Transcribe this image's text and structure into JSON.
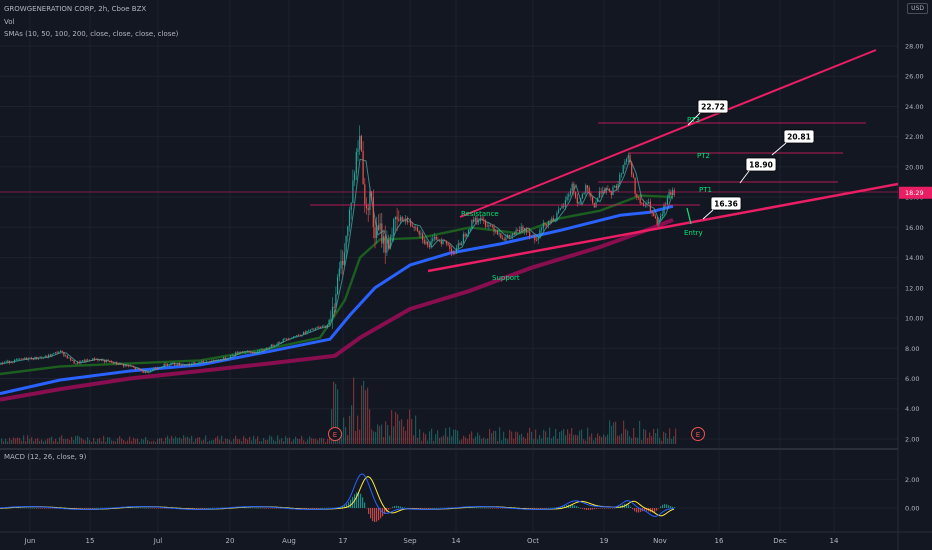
{
  "header": {
    "symbol_line": "GROWGENERATION CORP, 2h, Cboe BZX",
    "vol_label": "Vol",
    "sma_label": "SMAs (10, 50, 100, 200, close, close, close, close)",
    "macd_label": "MACD (12, 26, close, 9)",
    "currency": "USD"
  },
  "colors": {
    "background": "#131722",
    "grid": "#1e222d",
    "up_candle": "#26a69a",
    "down_candle": "#ef5350",
    "trendline": "#e91e63",
    "sma50": "#2962ff",
    "sma100": "#1b5e20",
    "sma200": "#880e4f",
    "annotation_text": "#00e676",
    "macd_line": "#2962ff",
    "signal_line": "#ffeb3b",
    "price_tag": "#e91e63"
  },
  "chart_data": {
    "type": "candlestick",
    "y_axis_ticks": [
      "2.00",
      "4.00",
      "6.00",
      "8.00",
      "10.00",
      "12.00",
      "14.00",
      "16.00",
      "18.00",
      "20.00",
      "22.00",
      "24.00",
      "26.00",
      "28.00"
    ],
    "y_range": [
      1.6,
      30.2
    ],
    "macd_ticks": [
      "2.00",
      "0.00"
    ],
    "x_labels": [
      "Jun",
      "15",
      "Jul",
      "20",
      "Aug",
      "17",
      "Sep",
      "14",
      "Oct",
      "19",
      "Nov",
      "16",
      "Dec",
      "14"
    ],
    "current_price": "18.29",
    "earnings_markers": [
      "E",
      "E"
    ],
    "annotations": {
      "targets": [
        {
          "value": "22.72",
          "label": "PT3"
        },
        {
          "value": "20.81",
          "label": "PT2"
        },
        {
          "value": "18.90",
          "label": "PT1"
        },
        {
          "value": "16.36",
          "label": "Entry"
        }
      ],
      "resistance_label": "Resistance",
      "support_label": "Support"
    },
    "price_path": [
      [
        0,
        7.0
      ],
      [
        25,
        7.3
      ],
      [
        45,
        7.4
      ],
      [
        60,
        7.8
      ],
      [
        75,
        7.0
      ],
      [
        95,
        7.3
      ],
      [
        115,
        7.0
      ],
      [
        130,
        6.8
      ],
      [
        145,
        6.4
      ],
      [
        155,
        6.7
      ],
      [
        170,
        7.0
      ],
      [
        185,
        6.9
      ],
      [
        205,
        7.1
      ],
      [
        225,
        7.3
      ],
      [
        240,
        7.8
      ],
      [
        255,
        7.7
      ],
      [
        270,
        8.1
      ],
      [
        285,
        8.6
      ],
      [
        300,
        8.9
      ],
      [
        315,
        9.3
      ],
      [
        328,
        9.5
      ],
      [
        335,
        11.5
      ],
      [
        342,
        13.8
      ],
      [
        348,
        16.0
      ],
      [
        352,
        18.5
      ],
      [
        356,
        20.5
      ],
      [
        360,
        22.2
      ],
      [
        363,
        19.5
      ],
      [
        366,
        16.5
      ],
      [
        370,
        18.8
      ],
      [
        374,
        15.5
      ],
      [
        380,
        15.8
      ],
      [
        386,
        14.6
      ],
      [
        392,
        15.8
      ],
      [
        398,
        16.4
      ],
      [
        404,
        16.6
      ],
      [
        410,
        16.2
      ],
      [
        416,
        16.1
      ],
      [
        422,
        15.4
      ],
      [
        428,
        14.7
      ],
      [
        436,
        15.3
      ],
      [
        445,
        15.0
      ],
      [
        455,
        14.3
      ],
      [
        465,
        15.6
      ],
      [
        475,
        16.6
      ],
      [
        485,
        16.3
      ],
      [
        495,
        15.9
      ],
      [
        505,
        15.2
      ],
      [
        515,
        15.6
      ],
      [
        525,
        16.0
      ],
      [
        535,
        15.2
      ],
      [
        545,
        16.3
      ],
      [
        555,
        16.6
      ],
      [
        565,
        17.6
      ],
      [
        572,
        18.8
      ],
      [
        578,
        17.5
      ],
      [
        586,
        18.6
      ],
      [
        594,
        17.4
      ],
      [
        602,
        18.6
      ],
      [
        610,
        18.2
      ],
      [
        618,
        18.9
      ],
      [
        623,
        20.1
      ],
      [
        628,
        20.8
      ],
      [
        632,
        19.6
      ],
      [
        636,
        18.1
      ],
      [
        642,
        17.4
      ],
      [
        648,
        17.6
      ],
      [
        654,
        16.6
      ],
      [
        658,
        16.1
      ],
      [
        663,
        17.1
      ],
      [
        668,
        18.1
      ],
      [
        673,
        18.3
      ]
    ],
    "sma_series": [
      {
        "key": "sma50",
        "values": [
          [
            0,
            5.0
          ],
          [
            60,
            5.9
          ],
          [
            130,
            6.5
          ],
          [
            200,
            6.9
          ],
          [
            270,
            7.8
          ],
          [
            330,
            8.6
          ],
          [
            350,
            10.2
          ],
          [
            375,
            12.0
          ],
          [
            410,
            13.5
          ],
          [
            450,
            14.3
          ],
          [
            500,
            14.9
          ],
          [
            560,
            15.8
          ],
          [
            620,
            16.8
          ],
          [
            650,
            17.0
          ],
          [
            673,
            17.4
          ]
        ]
      },
      {
        "key": "sma200",
        "values": [
          [
            0,
            4.6
          ],
          [
            60,
            5.3
          ],
          [
            130,
            6.0
          ],
          [
            200,
            6.5
          ],
          [
            270,
            7.0
          ],
          [
            335,
            7.5
          ],
          [
            360,
            8.7
          ],
          [
            410,
            10.6
          ],
          [
            470,
            11.8
          ],
          [
            530,
            13.3
          ],
          [
            600,
            14.7
          ],
          [
            650,
            15.9
          ],
          [
            673,
            16.5
          ]
        ]
      },
      {
        "key": "sma100",
        "values": [
          [
            0,
            6.3
          ],
          [
            60,
            6.8
          ],
          [
            130,
            7.0
          ],
          [
            200,
            7.2
          ],
          [
            270,
            8.0
          ],
          [
            320,
            8.7
          ],
          [
            345,
            11.2
          ],
          [
            360,
            14.0
          ],
          [
            380,
            15.2
          ],
          [
            420,
            15.3
          ],
          [
            470,
            16.0
          ],
          [
            520,
            15.6
          ],
          [
            560,
            16.6
          ],
          [
            600,
            17.1
          ],
          [
            640,
            18.1
          ],
          [
            673,
            18.0
          ]
        ]
      }
    ]
  }
}
